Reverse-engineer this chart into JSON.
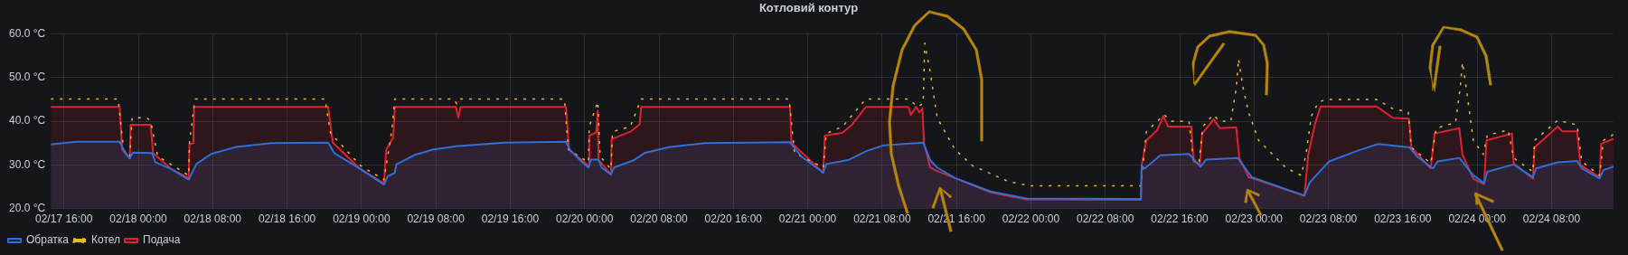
{
  "chart_data": {
    "type": "line",
    "title": "Котловий контур",
    "xlim": [
      "--02-17T14:35",
      "--02-24T14:40"
    ],
    "xticks": [
      {
        "value": "--02-17T16:00",
        "label": "02/17 16:00"
      },
      {
        "value": "--02-18T00:00",
        "label": "02/18 00:00"
      },
      {
        "value": "--02-18T08:00",
        "label": "02/18 08:00"
      },
      {
        "value": "--02-18T16:00",
        "label": "02/18 16:00"
      },
      {
        "value": "--02-19T00:00",
        "label": "02/19 00:00"
      },
      {
        "value": "--02-19T08:00",
        "label": "02/19 08:00"
      },
      {
        "value": "--02-19T16:00",
        "label": "02/19 16:00"
      },
      {
        "value": "--02-20T00:00",
        "label": "02/20 00:00"
      },
      {
        "value": "--02-20T08:00",
        "label": "02/20 08:00"
      },
      {
        "value": "--02-20T16:00",
        "label": "02/20 16:00"
      },
      {
        "value": "--02-21T00:00",
        "label": "02/21 00:00"
      },
      {
        "value": "--02-21T08:00",
        "label": "02/21 08:00"
      },
      {
        "value": "--02-21T16:00",
        "label": "02/21 16:00"
      },
      {
        "value": "--02-22T00:00",
        "label": "02/22 00:00"
      },
      {
        "value": "--02-22T08:00",
        "label": "02/22 08:00"
      },
      {
        "value": "--02-22T16:00",
        "label": "02/22 16:00"
      },
      {
        "value": "--02-23T00:00",
        "label": "02/23 00:00"
      },
      {
        "value": "--02-23T08:00",
        "label": "02/23 08:00"
      },
      {
        "value": "--02-23T16:00",
        "label": "02/23 16:00"
      },
      {
        "value": "--02-24T00:00",
        "label": "02/24 00:00"
      },
      {
        "value": "--02-24T08:00",
        "label": "02/24 08:00"
      }
    ],
    "ylim": [
      20,
      60
    ],
    "yticks": [
      {
        "value": 20,
        "label": "20.0 °C"
      },
      {
        "value": 30,
        "label": "30.0 °C"
      },
      {
        "value": 40,
        "label": "40.0 °C"
      },
      {
        "value": 50,
        "label": "50.0 °C"
      },
      {
        "value": 60,
        "label": "60.0 °C"
      }
    ],
    "grid": true,
    "legend": "bottom left",
    "marker": "none",
    "series": [
      {
        "name": "Обратка",
        "type": "area",
        "color": "#2f6fd8",
        "line_style": "solid",
        "x": [
          "--02-17T14:35",
          "--02-17T17:15",
          "--02-17T22:00",
          "--02-17T22:25",
          "--02-17T23:05",
          "--02-17T23:25",
          "--02-18T01:30",
          "--02-18T01:50",
          "--02-18T03:35",
          "--02-18T05:25",
          "--02-18T05:55",
          "--02-18T06:15",
          "--02-18T07:50",
          "--02-18T10:30",
          "--02-18T14:20",
          "--02-18T20:25",
          "--02-18T21:05",
          "--02-18T23:55",
          "--02-19T02:25",
          "--02-19T02:50",
          "--02-19T03:35",
          "--02-19T03:45",
          "--02-19T05:45",
          "--02-19T07:40",
          "--02-19T10:20",
          "--02-19T15:20",
          "--02-19T22:00",
          "--02-19T22:25",
          "--02-19T23:30",
          "--02-20T00:25",
          "--02-20T00:40",
          "--02-20T01:30",
          "--02-20T01:50",
          "--02-20T02:50",
          "--02-20T03:10",
          "--02-20T05:20",
          "--02-20T06:25",
          "--02-20T09:10",
          "--02-20T13:00",
          "--02-20T22:05",
          "--02-20T23:20",
          "--02-21T01:40",
          "--02-21T02:00",
          "--02-21T04:20",
          "--02-21T06:15",
          "--02-21T08:10",
          "--02-21T12:25",
          "--02-21T13:10",
          "--02-21T13:55",
          "--02-21T15:50",
          "--02-21T19:40",
          "--02-21T23:30",
          "--02-22T11:50",
          "--02-22T11:55",
          "--02-22T12:15",
          "--02-22T13:55",
          "--02-22T17:00",
          "--02-22T18:15",
          "--02-22T18:50",
          "--02-22T22:15",
          "--02-22T23:45",
          "--02-23T03:30",
          "--02-23T05:25",
          "--02-23T06:00",
          "--02-23T08:05",
          "--02-23T11:05",
          "--02-23T13:20",
          "--02-23T16:45",
          "--02-23T17:30",
          "--02-23T19:15",
          "--02-23T19:45",
          "--02-23T22:05",
          "--02-23T23:35",
          "--02-24T00:45",
          "--02-24T01:05",
          "--02-24T03:55",
          "--02-24T06:00",
          "--02-24T06:20",
          "--02-24T08:40",
          "--02-24T10:45",
          "--02-24T11:15",
          "--02-24T13:10",
          "--02-24T13:35",
          "--02-24T14:40"
        ],
        "values": [
          34.7,
          35.3,
          35.3,
          33.5,
          31.5,
          32.8,
          32.7,
          30.6,
          29.0,
          26.6,
          28.8,
          30.2,
          32.5,
          34.1,
          35.0,
          35.1,
          32.7,
          29.0,
          25.5,
          27.4,
          28.2,
          30.1,
          32.3,
          33.5,
          34.3,
          35.1,
          35.3,
          33.5,
          31.1,
          29.4,
          31.2,
          31.2,
          29.4,
          27.8,
          29.4,
          31.1,
          32.7,
          34.1,
          35.0,
          35.2,
          31.9,
          28.2,
          30.2,
          31.1,
          33.1,
          34.5,
          35.1,
          31.1,
          29.4,
          27.0,
          23.9,
          22.3,
          22.2,
          29.8,
          29.2,
          32.2,
          32.5,
          29.6,
          31.2,
          31.6,
          27.2,
          24.4,
          23.0,
          26.0,
          30.8,
          33.2,
          34.8,
          34.0,
          32.0,
          29.2,
          30.8,
          31.6,
          27.6,
          25.8,
          28.4,
          30.1,
          27.2,
          29.2,
          30.6,
          30.9,
          29.2,
          26.9,
          28.8,
          29.6
        ]
      },
      {
        "name": "Котел",
        "type": "line",
        "color": "#e8b923",
        "line_style": "dashed",
        "x": [
          "--02-17T14:35",
          "--02-17T21:50",
          "--02-17T22:25",
          "--02-17T23:05",
          "--02-17T23:20",
          "--02-18T00:55",
          "--02-18T01:20",
          "--02-18T02:05",
          "--02-18T05:25",
          "--02-18T05:30",
          "--02-18T06:05",
          "--02-18T20:05",
          "--02-18T20:40",
          "--02-18T23:55",
          "--02-19T02:25",
          "--02-19T03:15",
          "--02-19T03:35",
          "--02-19T09:55",
          "--02-19T10:15",
          "--02-19T10:30",
          "--02-19T21:50",
          "--02-19T22:15",
          "--02-20T00:25",
          "--02-20T00:30",
          "--02-20T01:25",
          "--02-20T01:40",
          "--02-20T02:50",
          "--02-20T03:00",
          "--02-20T04:55",
          "--02-20T06:05",
          "--02-20T22:00",
          "--02-20T22:35",
          "--02-21T01:40",
          "--02-21T02:00",
          "--02-21T03:45",
          "--02-21T06:15",
          "--02-21T10:50",
          "--02-21T11:50",
          "--02-21T12:25",
          "--02-21T12:35",
          "--02-21T13:10",
          "--02-21T13:55",
          "--02-21T15:50",
          "--02-21T17:45",
          "--02-21T21:35",
          "--02-21T23:55",
          "--02-22T11:50",
          "--02-22T12:25",
          "--02-22T14:20",
          "--02-22T15:05",
          "--02-22T17:00",
          "--02-22T17:30",
          "--02-22T18:05",
          "--02-22T18:30",
          "--02-22T19:35",
          "--02-22T20:20",
          "--02-22T21:30",
          "--02-22T22:05",
          "--02-22T22:20",
          "--02-22T22:50",
          "--02-22T23:25",
          "--02-23T00:30",
          "--02-23T03:30",
          "--02-23T05:05",
          "--02-23T05:35",
          "--02-23T06:10",
          "--02-23T06:55",
          "--02-23T07:40",
          "--02-23T13:10",
          "--02-23T14:55",
          "--02-23T16:35",
          "--02-23T16:55",
          "--02-23T19:00",
          "--02-23T19:35",
          "--02-23T21:40",
          "--02-23T22:10",
          "--02-23T22:25",
          "--02-23T22:50",
          "--02-23T23:35",
          "--02-24T00:40",
          "--02-24T01:05",
          "--02-24T03:20",
          "--02-24T03:55",
          "--02-24T06:00",
          "--02-24T06:10",
          "--02-24T08:40",
          "--02-24T10:45",
          "--02-24T11:15",
          "--02-24T13:10",
          "--02-24T13:35",
          "--02-24T14:40"
        ],
        "values": [
          45.1,
          45.1,
          33.5,
          32.0,
          40.8,
          40.8,
          40.0,
          32.0,
          27.6,
          35.0,
          45.1,
          45.1,
          37.3,
          29.8,
          26.6,
          37.6,
          45.1,
          45.1,
          44.0,
          45.1,
          45.1,
          33.5,
          30.6,
          38.8,
          44.5,
          32.0,
          29.0,
          37.6,
          38.8,
          45.1,
          45.1,
          32.7,
          29.4,
          37.2,
          38.8,
          45.1,
          45.1,
          43.3,
          44.1,
          57.9,
          51.4,
          40.8,
          33.5,
          29.8,
          26.2,
          25.2,
          25.2,
          37.6,
          41.5,
          40.0,
          40.0,
          30.8,
          30.8,
          38.8,
          41.5,
          40.0,
          40.0,
          47.5,
          54.3,
          47.5,
          42.0,
          35.6,
          29.2,
          27.6,
          32.4,
          41.2,
          44.3,
          45.0,
          45.0,
          42.9,
          42.1,
          34.0,
          30.4,
          38.4,
          39.7,
          47.5,
          53.5,
          47.5,
          35.6,
          32.4,
          36.8,
          38.0,
          31.6,
          28.4,
          35.6,
          40.2,
          39.2,
          30.8,
          27.6,
          35.6,
          37.0
        ]
      },
      {
        "name": "Подача",
        "type": "area",
        "color": "#e0202f",
        "line_style": "solid",
        "x": [
          "--02-17T14:35",
          "--02-17T22:00",
          "--02-17T22:15",
          "--02-17T23:05",
          "--02-17T23:10",
          "--02-18T01:20",
          "--02-18T01:35",
          "--02-18T03:35",
          "--02-18T05:25",
          "--02-18T05:30",
          "--02-18T05:55",
          "--02-18T06:00",
          "--02-18T20:25",
          "--02-18T20:55",
          "--02-18T23:55",
          "--02-19T02:25",
          "--02-19T02:40",
          "--02-19T03:25",
          "--02-19T03:35",
          "--02-19T10:10",
          "--02-19T10:25",
          "--02-19T10:40",
          "--02-19T22:00",
          "--02-19T22:20",
          "--02-20T00:25",
          "--02-20T00:30",
          "--02-20T01:15",
          "--02-20T01:25",
          "--02-20T01:30",
          "--02-20T02:50",
          "--02-20T02:55",
          "--02-20T04:55",
          "--02-20T05:55",
          "--02-20T06:05",
          "--02-20T22:05",
          "--02-20T22:15",
          "--02-21T01:40",
          "--02-21T01:50",
          "--02-21T03:45",
          "--02-21T04:45",
          "--02-21T06:15",
          "--02-21T10:50",
          "--02-21T11:05",
          "--02-21T11:40",
          "--02-21T12:00",
          "--02-21T12:20",
          "--02-21T12:30",
          "--02-21T13:10",
          "--02-21T13:55",
          "--02-21T15:50",
          "--02-21T19:40",
          "--02-21T23:30",
          "--02-22T11:50",
          "--02-22T11:55",
          "--02-22T12:25",
          "--02-22T13:35",
          "--02-22T14:15",
          "--02-22T14:45",
          "--02-22T17:15",
          "--02-22T17:30",
          "--02-22T18:10",
          "--02-22T18:25",
          "--02-22T19:40",
          "--02-22T20:20",
          "--02-22T22:05",
          "--02-22T22:25",
          "--02-22T23:25",
          "--02-23T01:40",
          "--02-23T05:25",
          "--02-23T05:50",
          "--02-23T06:35",
          "--02-23T07:10",
          "--02-23T13:10",
          "--02-23T14:55",
          "--02-23T16:40",
          "--02-23T16:55",
          "--02-23T19:00",
          "--02-23T19:25",
          "--02-23T22:05",
          "--02-23T22:25",
          "--02-23T23:35",
          "--02-24T00:45",
          "--02-24T01:00",
          "--02-24T03:45",
          "--02-24T03:55",
          "--02-24T06:00",
          "--02-24T06:10",
          "--02-24T08:40",
          "--02-24T09:10",
          "--02-24T10:45",
          "--02-24T11:05",
          "--02-24T13:10",
          "--02-24T13:20",
          "--02-24T14:40"
        ],
        "values": [
          43.3,
          43.3,
          33.5,
          31.5,
          39.2,
          39.2,
          32.7,
          29.0,
          27.0,
          34.7,
          35.0,
          43.3,
          43.3,
          35.1,
          29.0,
          25.8,
          33.5,
          36.3,
          43.3,
          43.3,
          40.8,
          43.3,
          43.3,
          33.5,
          29.8,
          36.7,
          37.4,
          42.4,
          31.2,
          27.8,
          35.9,
          37.6,
          39.3,
          43.3,
          43.3,
          35.1,
          28.2,
          36.7,
          37.4,
          39.2,
          43.3,
          43.3,
          41.5,
          43.3,
          42.1,
          42.9,
          35.1,
          29.4,
          28.6,
          27.0,
          23.7,
          22.1,
          22.0,
          30.0,
          35.6,
          38.0,
          41.2,
          38.8,
          38.8,
          30.8,
          30.0,
          37.2,
          40.4,
          38.4,
          38.6,
          31.6,
          27.2,
          25.6,
          22.9,
          32.4,
          39.6,
          43.4,
          43.4,
          40.8,
          40.6,
          34.0,
          29.2,
          37.2,
          38.4,
          32.4,
          26.8,
          25.6,
          35.6,
          37.2,
          30.4,
          26.8,
          34.0,
          38.8,
          37.7,
          37.7,
          30.0,
          27.2,
          34.8,
          36.0
        ]
      }
    ]
  }
}
